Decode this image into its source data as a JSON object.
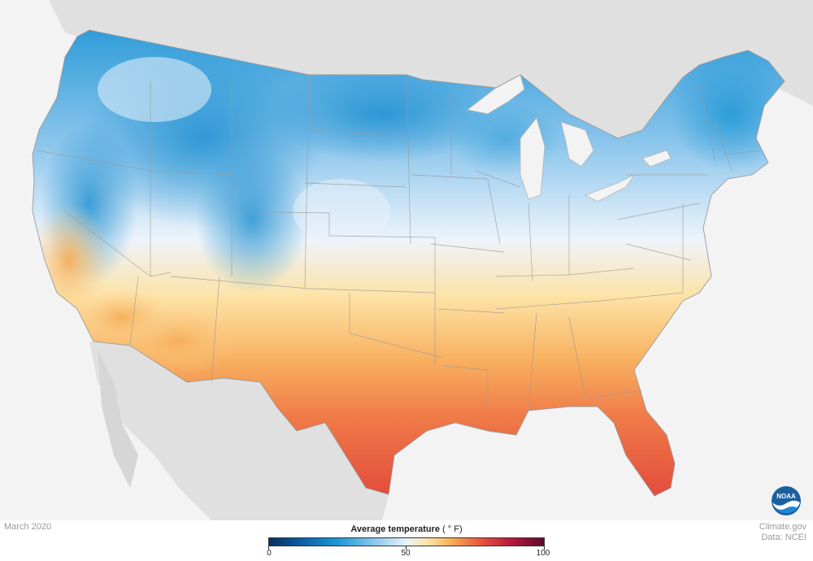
{
  "map": {
    "date_label": "March 2020",
    "credit": {
      "line1": "Climate.gov",
      "line2": "Data: NCEI"
    },
    "legend": {
      "title_bold": "Average temperature",
      "title_unit": "( ° F)",
      "min_label": "0",
      "mid_label": "50",
      "max_label": "100",
      "scale_min": 0,
      "scale_max": 100
    },
    "logo": {
      "text": "NOAA",
      "icon": "noaa-logo-icon"
    },
    "colors": {
      "cold_dark": "#0b2f5b",
      "cold": "#1f98d6",
      "neutral": "#e9f2fa",
      "warm": "#f8b057",
      "hot": "#e8553d",
      "hottest": "#5c0b2f",
      "land_outside": "#e0e0e0",
      "water": "#f3f3f3"
    }
  }
}
